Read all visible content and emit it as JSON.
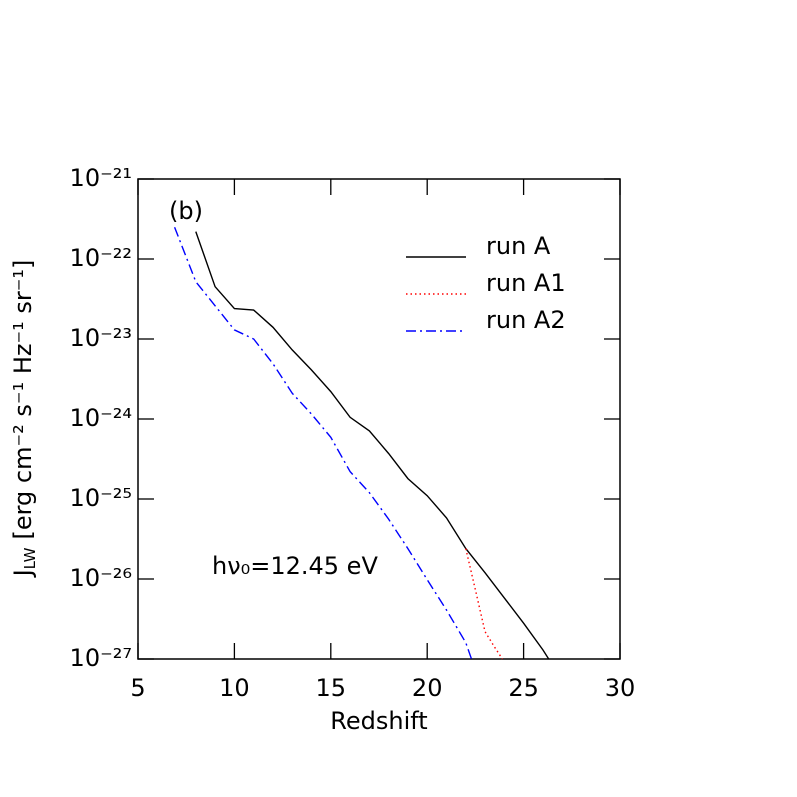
{
  "chart_data": {
    "type": "line",
    "panel_label": "(b)",
    "annotation": "hν₀=12.45 eV",
    "xlabel": "Redshift",
    "ylabel": {
      "symbol": "J",
      "subscript": "LW",
      "units": "[erg cm⁻² s⁻¹ Hz⁻¹ sr⁻¹]"
    },
    "xlim": [
      5,
      30
    ],
    "xticks": [
      5,
      10,
      15,
      20,
      25,
      30
    ],
    "ylim": [
      1e-27,
      1e-21
    ],
    "yscale": "log",
    "yticks": [
      {
        "value": 1e-27,
        "label": "10⁻²⁷"
      },
      {
        "value": 1e-26,
        "label": "10⁻²⁶"
      },
      {
        "value": 1e-25,
        "label": "10⁻²⁵"
      },
      {
        "value": 1e-24,
        "label": "10⁻²⁴"
      },
      {
        "value": 1e-23,
        "label": "10⁻²³"
      },
      {
        "value": 1e-22,
        "label": "10⁻²²"
      },
      {
        "value": 1e-21,
        "label": "10⁻²¹"
      }
    ],
    "grid": false,
    "legend": "upper right",
    "series": [
      {
        "name": "run A",
        "color": "#000000",
        "linestyle": "solid",
        "x": [
          8,
          9,
          10,
          11,
          12,
          13,
          14,
          15,
          16,
          17,
          18,
          19,
          20,
          21,
          22,
          23,
          24,
          25,
          26,
          26.3
        ],
        "values": [
          2.2e-22,
          4.5e-23,
          2.4e-23,
          2.3e-23,
          1.4e-23,
          7.3e-24,
          4.1e-24,
          2.2e-24,
          1.05e-24,
          7.1e-25,
          3.7e-25,
          1.8e-25,
          1.1e-25,
          5.8e-26,
          2.4e-26,
          1.2e-26,
          5.8e-27,
          2.8e-27,
          1.3e-27,
          1e-27
        ]
      },
      {
        "name": "run A1",
        "color": "#ff0000",
        "linestyle": "dotted",
        "x": [
          22,
          22.5,
          23,
          23.5,
          23.9
        ],
        "values": [
          2.4e-26,
          7.3e-27,
          2.2e-27,
          1.4e-27,
          1e-27
        ]
      },
      {
        "name": "run A2",
        "color": "#0000ff",
        "linestyle": "dashdot",
        "x": [
          6.9,
          8,
          10,
          11,
          12,
          13,
          14,
          15,
          16,
          17,
          18,
          19,
          20,
          21,
          22,
          22.3
        ],
        "values": [
          2.5e-22,
          5.2e-23,
          1.3e-23,
          1e-23,
          4.9e-24,
          2.1e-24,
          1.15e-24,
          5.9e-25,
          2.2e-25,
          1.2e-25,
          5.6e-26,
          2.4e-26,
          9.8e-27,
          4.1e-27,
          1.6e-27,
          1e-27
        ]
      }
    ]
  }
}
